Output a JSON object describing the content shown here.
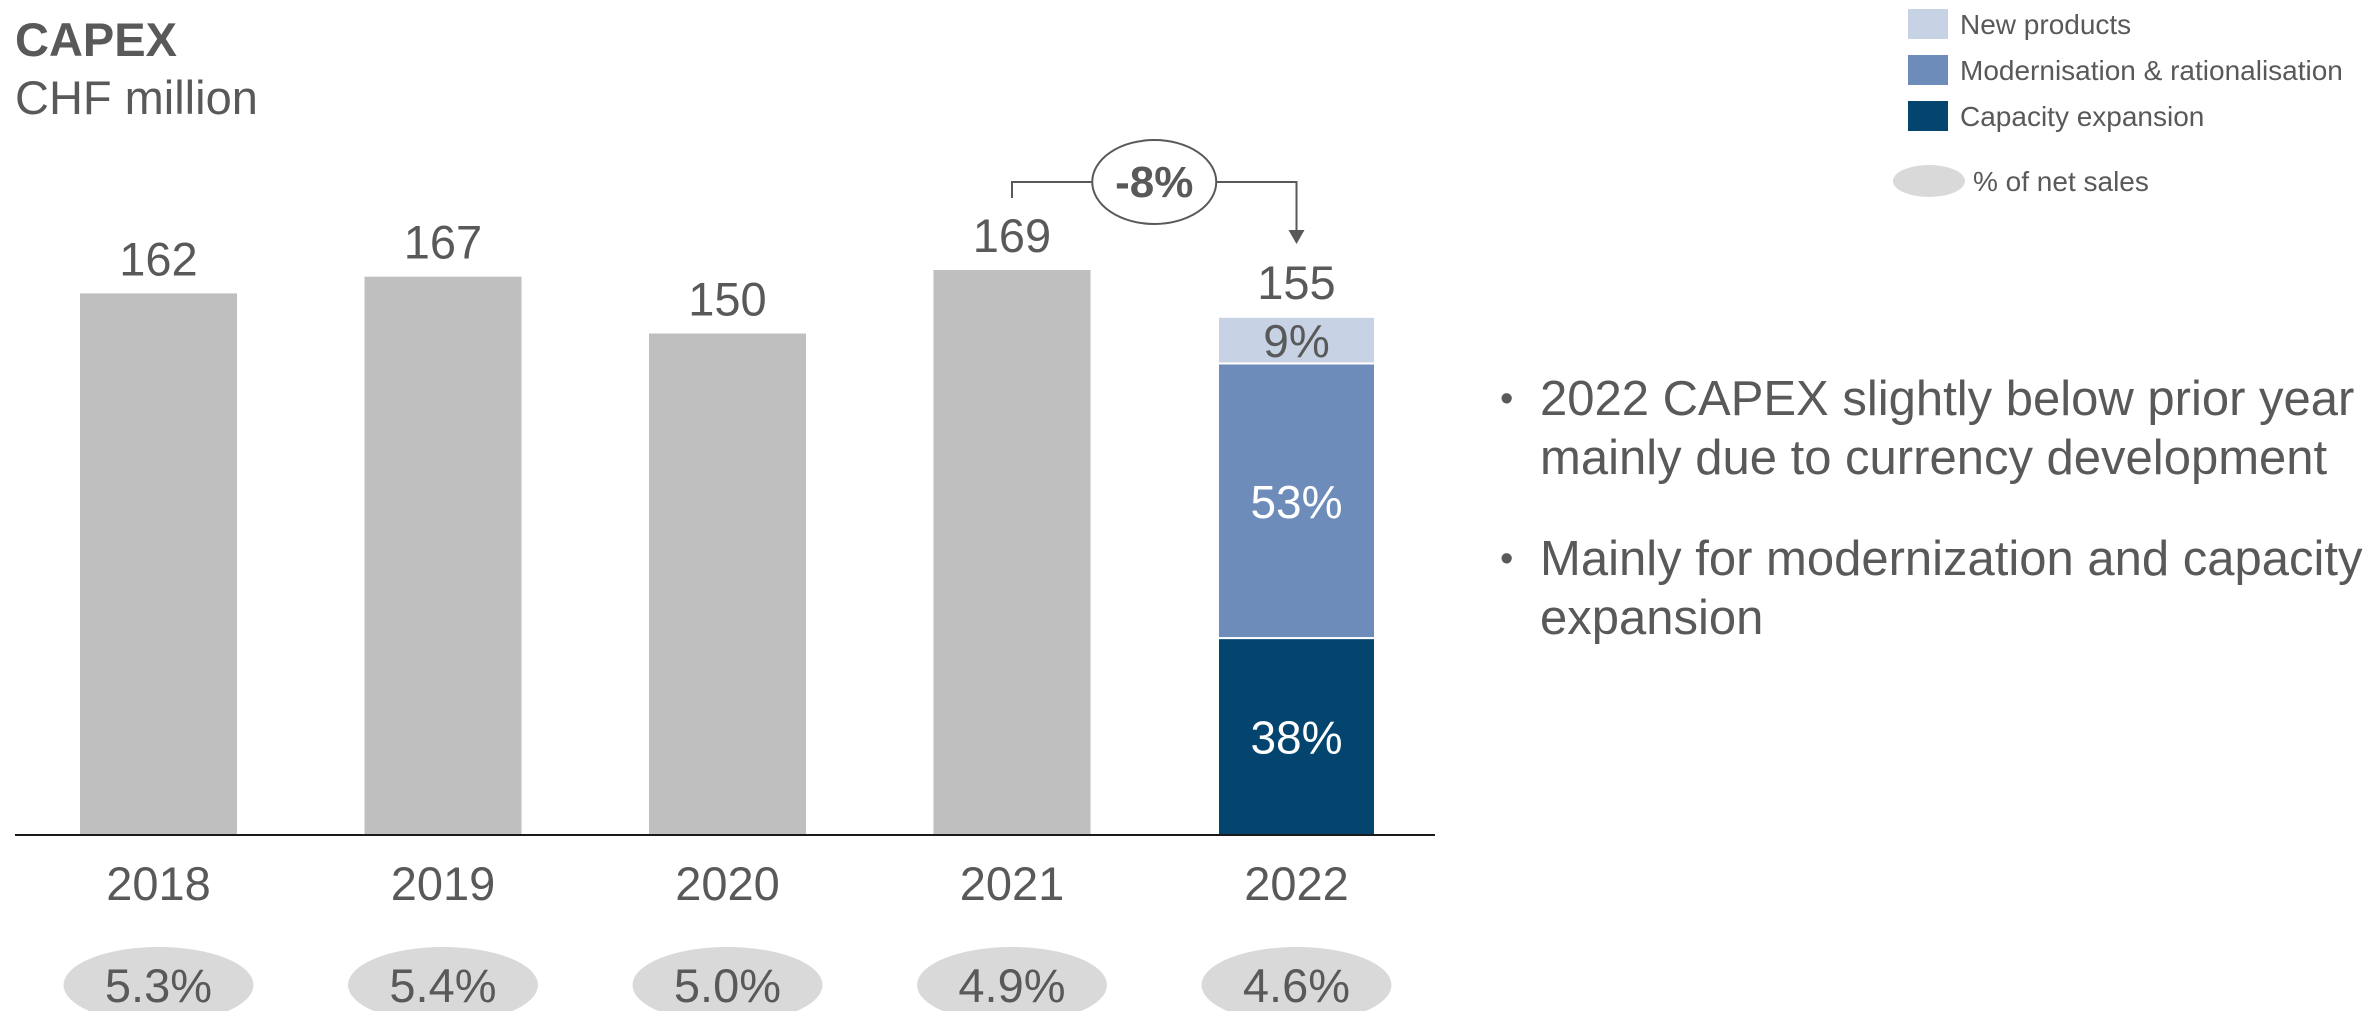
{
  "header": {
    "title": "CAPEX",
    "subtitle": "CHF million"
  },
  "legend": {
    "items": [
      {
        "label": "New products",
        "color": "#c7d2e4"
      },
      {
        "label": "Modernisation & rationalisation",
        "color": "#6e8cba"
      },
      {
        "label": "Capacity expansion",
        "color": "#04456f"
      }
    ],
    "ellipse_label": "% of net sales",
    "ellipse_color": "#d9d9d9"
  },
  "change_annotation": {
    "label": "-8%",
    "from": "2021",
    "to": "2022"
  },
  "bullets": [
    "2022 CAPEX slightly below prior year mainly due to currency development",
    "Mainly for modernization and capacity expansion"
  ],
  "chart_data": {
    "type": "bar",
    "title": "CAPEX",
    "ylabel": "CHF million",
    "categories": [
      "2018",
      "2019",
      "2020",
      "2021",
      "2022"
    ],
    "values": [
      162,
      167,
      150,
      169,
      155
    ],
    "value_labels": [
      "162",
      "167",
      "150",
      "169",
      "155"
    ],
    "bar_color": "#bfbfbf",
    "ylim": [
      0,
      169
    ],
    "breakdown_2022": [
      {
        "name": "Capacity expansion",
        "share": 38,
        "label": "38%",
        "color": "#04456f",
        "text_color": "#ffffff"
      },
      {
        "name": "Modernisation & rationalisation",
        "share": 53,
        "label": "53%",
        "color": "#6e8cba",
        "text_color": "#ffffff"
      },
      {
        "name": "New products",
        "share": 9,
        "label": "9%",
        "color": "#c7d2e4",
        "text_color": "#595959"
      }
    ],
    "pct_of_net_sales": [
      "5.3%",
      "5.4%",
      "5.0%",
      "4.9%",
      "4.6%"
    ]
  }
}
